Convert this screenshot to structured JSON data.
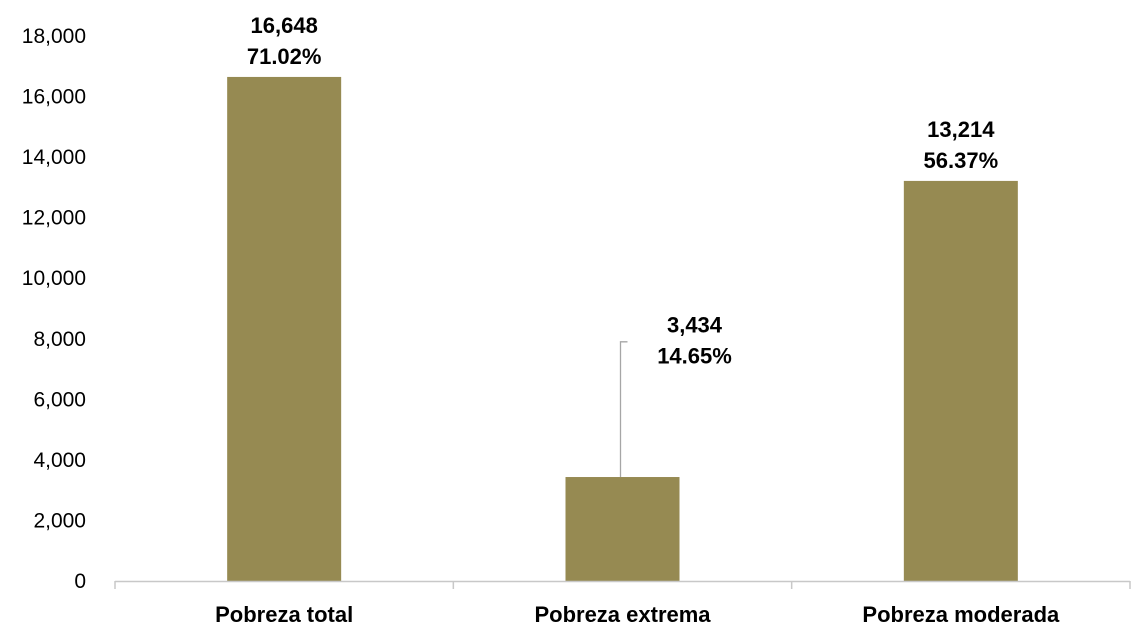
{
  "chart_data": {
    "type": "bar",
    "title": "",
    "xlabel": "",
    "ylabel": "",
    "categories": [
      "Pobreza total",
      "Pobreza extrema",
      "Pobreza moderada"
    ],
    "values": [
      16648,
      3434,
      13214
    ],
    "data_labels": [
      {
        "value": "16,648",
        "percent": "71.02%"
      },
      {
        "value": "3,434",
        "percent": "14.65%"
      },
      {
        "value": "13,214",
        "percent": "56.37%"
      }
    ],
    "ylim": [
      0,
      18000
    ],
    "yticks": [
      "0",
      "2,000",
      "4,000",
      "6,000",
      "8,000",
      "10,000",
      "12,000",
      "14,000",
      "16,000",
      "18,000"
    ],
    "grid": false,
    "legend": "none",
    "bar_color": "#968a52",
    "axis_color": "#c8c8c8",
    "leader_line_color": "#a6a6a6"
  }
}
